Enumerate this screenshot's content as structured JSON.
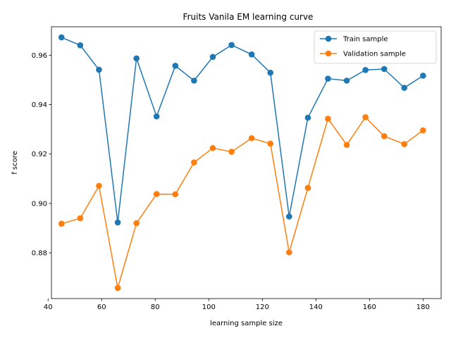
{
  "chart_data": {
    "type": "line",
    "title": "Fruits Vanila EM learning curve",
    "xlabel": "learning sample size",
    "ylabel": "f score",
    "xlim": [
      41.25,
      186.75
    ],
    "ylim": [
      0.8615,
      0.9715
    ],
    "x_ticks": [
      40,
      60,
      80,
      100,
      120,
      140,
      160,
      180
    ],
    "y_ticks": [
      0.88,
      0.9,
      0.92,
      0.94,
      0.96
    ],
    "x_tick_labels": [
      "40",
      "60",
      "80",
      "100",
      "120",
      "140",
      "160",
      "180"
    ],
    "y_tick_labels": [
      "0.88",
      "0.90",
      "0.92",
      "0.94",
      "0.96"
    ],
    "grid": false,
    "legend_position": "top-right",
    "x": [
      45,
      52,
      59,
      66,
      73,
      80.5,
      87.5,
      94.5,
      101.5,
      108.5,
      116,
      123,
      130,
      137,
      144.5,
      151.5,
      158.5,
      165.5,
      173,
      180
    ],
    "series": [
      {
        "name": "Train sample",
        "color": "#1f77b4",
        "values": [
          0.9672,
          0.964,
          0.9541,
          0.8923,
          0.9587,
          0.9352,
          0.9557,
          0.9497,
          0.9593,
          0.9641,
          0.9603,
          0.9529,
          0.8947,
          0.9347,
          0.9505,
          0.9497,
          0.954,
          0.9544,
          0.9468,
          0.9517
        ]
      },
      {
        "name": "Validation sample",
        "color": "#ff7f0e",
        "values": [
          0.8918,
          0.894,
          0.9071,
          0.8658,
          0.892,
          0.9038,
          0.9037,
          0.9166,
          0.9224,
          0.9209,
          0.9264,
          0.9242,
          0.8802,
          0.9063,
          0.9343,
          0.9237,
          0.9349,
          0.9272,
          0.924,
          0.9296
        ]
      }
    ]
  }
}
